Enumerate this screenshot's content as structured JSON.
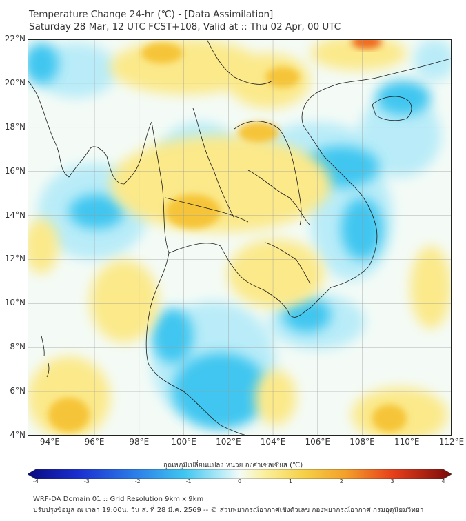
{
  "header": {
    "title_line1": "Temperature Change 24-hr (℃) - [Data Assimilation]",
    "title_line2": "Saturday 28 Mar, 12 UTC FCST+108, Valid at :: Thu 02 Apr, 00 UTC"
  },
  "map": {
    "lon_range": [
      93,
      112
    ],
    "lat_range": [
      4,
      22
    ],
    "lat_labels": [
      "22°N",
      "20°N",
      "18°N",
      "16°N",
      "14°N",
      "12°N",
      "10°N",
      "8°N",
      "6°N",
      "4°N"
    ],
    "lon_labels": [
      "94°E",
      "96°E",
      "98°E",
      "100°E",
      "102°E",
      "104°E",
      "106°E",
      "108°E",
      "110°E",
      "112°E"
    ],
    "grid": true,
    "field_colors": {
      "cold": "#3fc6f0",
      "cool": "#b9ecf8",
      "neutral": "#f4fbf6",
      "warm": "#fbe98a",
      "hot": "#f6c437",
      "very_hot": "#ee6a1c"
    },
    "coastline_color": "#1a1a1a"
  },
  "colorbar": {
    "title": "อุณหภูมิเปลี่ยนแปลง หน่วย องศาเซลเซียส (℃)",
    "ticks": [
      "-4",
      "-3",
      "-2",
      "-1",
      "0",
      "1",
      "2",
      "3",
      "4"
    ],
    "range": [
      -4,
      4
    ]
  },
  "footer": {
    "line1": "WRF-DA Domain 01 :: Grid Resolution 9km x 9km",
    "line2": "ปรับปรุงข้อมูล ณ เวลา 19:00น. วัน ส. ที่ 28 มี.ค. 2569 -- © ส่วนพยากรณ์อากาศเชิงตัวเลข กองพยากรณ์อากาศ กรมอุตุนิยมวิทยา"
  }
}
